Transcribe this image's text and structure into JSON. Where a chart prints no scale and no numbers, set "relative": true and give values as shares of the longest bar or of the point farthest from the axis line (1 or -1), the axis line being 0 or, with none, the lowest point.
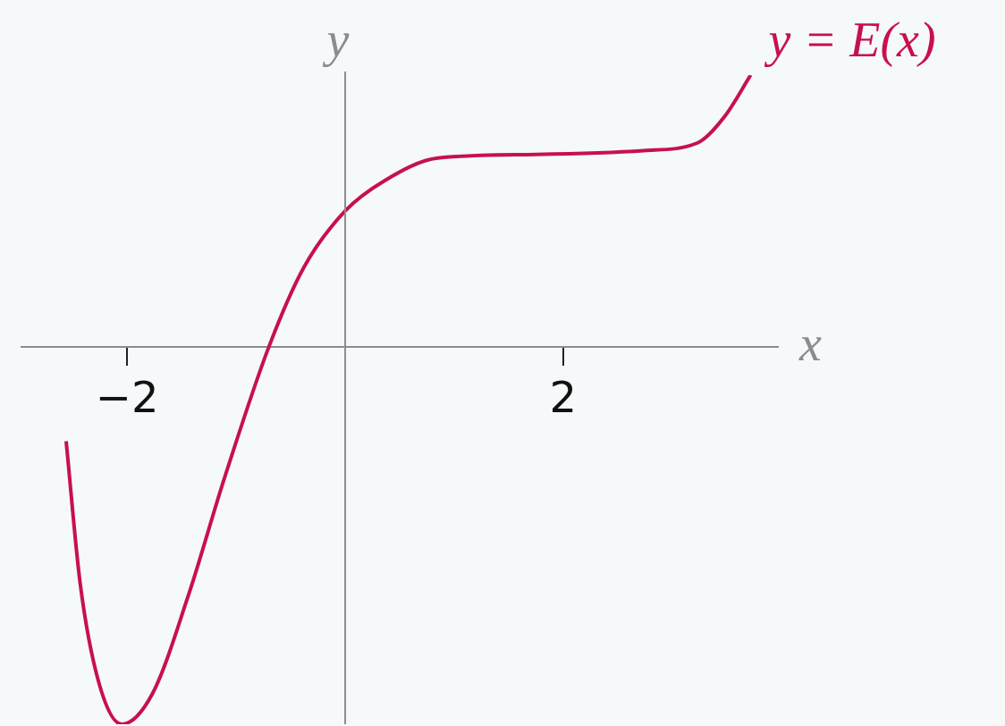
{
  "chart_data": {
    "type": "line",
    "relative": true,
    "xlabel": "x",
    "ylabel": "y",
    "xlim": [
      -2.97,
      3.97
    ],
    "xticks": [
      {
        "value": -2,
        "label": "−2"
      },
      2
    ],
    "legend": false,
    "grid": false,
    "marker": "none",
    "line_style": "solid",
    "tick_labels": "x",
    "series": [
      {
        "name": "y = E(x)",
        "color": "#c8104e",
        "x": [
          -2.56,
          -2.43,
          -2.26,
          -2.05,
          -1.77,
          -1.44,
          -1.11,
          -0.7,
          -0.38,
          0,
          0.36,
          0.85,
          1.75,
          2.74,
          3.23,
          3.48,
          3.72
        ],
        "values": [
          -0.25,
          -0.63,
          -0.89,
          -1,
          -0.92,
          -0.66,
          -0.35,
          0,
          0.21,
          0.36,
          0.44,
          0.5,
          0.51,
          0.52,
          0.54,
          0.61,
          0.72
        ]
      }
    ]
  }
}
